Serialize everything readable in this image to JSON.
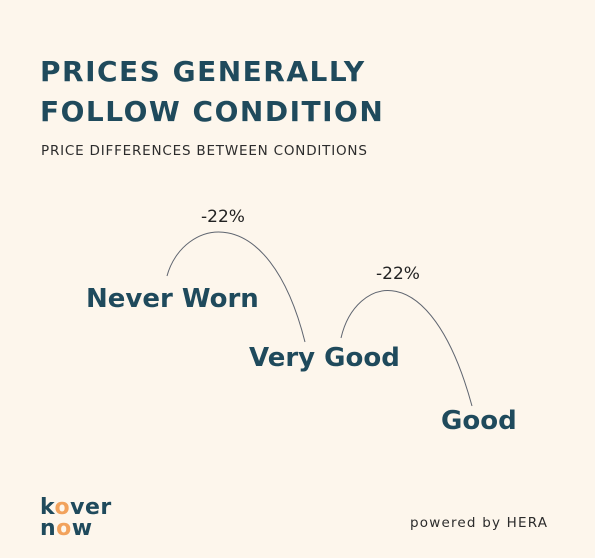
{
  "title": {
    "line1": "PRICES GENERALLY",
    "line2": "FOLLOW CONDITION"
  },
  "subtitle": "PRICE DIFFERENCES BETWEEN CONDITIONS",
  "stages": [
    {
      "label": "Never Worn"
    },
    {
      "label": "Very Good"
    },
    {
      "label": "Good"
    }
  ],
  "transitions": [
    {
      "from": "Never Worn",
      "to": "Very Good",
      "label": "-22%"
    },
    {
      "from": "Very Good",
      "to": "Good",
      "label": "-22%"
    }
  ],
  "logo": {
    "line1_a": "k",
    "line1_o": "o",
    "line1_b": "ver",
    "line2_a": "n",
    "line2_o": "o",
    "line2_b": "w"
  },
  "footer": "powered by HERA",
  "colors": {
    "background": "#fdf6ec",
    "primary": "#1f4a5c",
    "accent": "#f2a25c",
    "arc": "#5f6570"
  }
}
